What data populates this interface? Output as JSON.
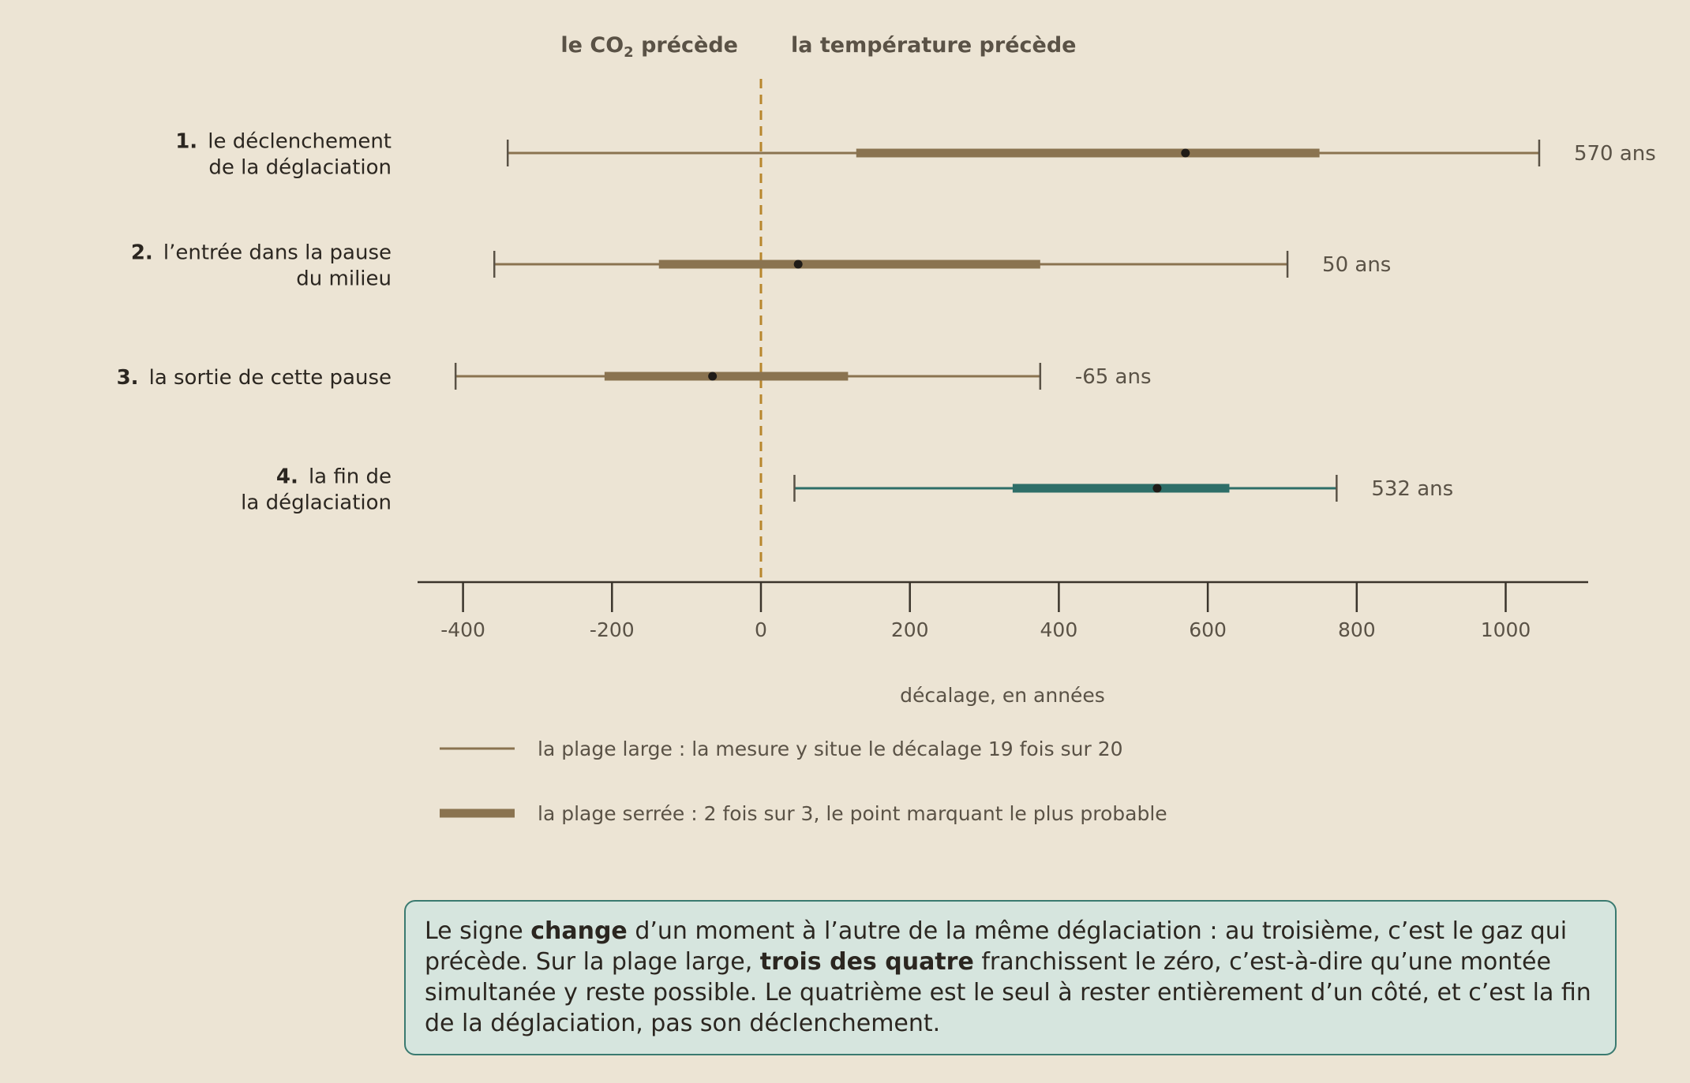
{
  "chart_data": {
    "type": "interval",
    "header_left": {
      "pre": "le CO",
      "sub": "2",
      "post": " précède"
    },
    "header_right": "la température précède",
    "xlabel": "décalage, en années",
    "xlim": [
      -460,
      1110
    ],
    "xticks": [
      -400,
      -200,
      0,
      200,
      400,
      600,
      800,
      1000
    ],
    "reference_line": 0,
    "rows": [
      {
        "num": "1.",
        "label": [
          "le déclenchement",
          "de la déglaciation"
        ],
        "wide": [
          -340,
          1045
        ],
        "narrow": [
          128,
          750
        ],
        "point": 570,
        "value_label": "570 ans",
        "color": "#8a7350"
      },
      {
        "num": "2.",
        "label": [
          "l’entrée dans la pause",
          "du milieu"
        ],
        "wide": [
          -358,
          707
        ],
        "narrow": [
          -137,
          375
        ],
        "point": 50,
        "value_label": "50 ans",
        "color": "#8a7350"
      },
      {
        "num": "3.",
        "label": [
          "la sortie de cette pause"
        ],
        "wide": [
          -410,
          375
        ],
        "narrow": [
          -210,
          117
        ],
        "point": -65,
        "value_label": "-65 ans",
        "color": "#8a7350"
      },
      {
        "num": "4.",
        "label": [
          "la fin de",
          "la déglaciation"
        ],
        "wide": [
          45,
          773
        ],
        "narrow": [
          338,
          629
        ],
        "point": 532,
        "value_label": "532 ans",
        "color": "#2e6e68"
      }
    ],
    "legend": [
      {
        "style": "thin",
        "text": "la plage large : la mesure y situe le décalage 19 fois sur 20"
      },
      {
        "style": "thick",
        "text": "la plage serrée : 2 fois sur 3, le point marquant le plus probable"
      }
    ]
  },
  "note": {
    "parts": [
      {
        "t": "Le signe ",
        "b": false
      },
      {
        "t": "change",
        "b": true
      },
      {
        "t": " d’un moment à l’autre de la même déglaciation : au troisième, c’est le gaz qui précède. Sur la plage large, ",
        "b": false
      },
      {
        "t": "trois des quatre",
        "b": true
      },
      {
        "t": " franchissent le zéro, c’est-à-dire qu’une montée simultanée y reste possible. Le quatrième est le seul à rester entièrement d’un côté, et c’est la fin de la déglaciation, pas son déclenchement.",
        "b": false
      }
    ]
  },
  "colors": {
    "background": "#ece4d4",
    "bar": "#8a7350",
    "highlight": "#2e6e68",
    "zero_line": "#b8862d",
    "text": "#2b2620",
    "muted": "#5a5246"
  }
}
